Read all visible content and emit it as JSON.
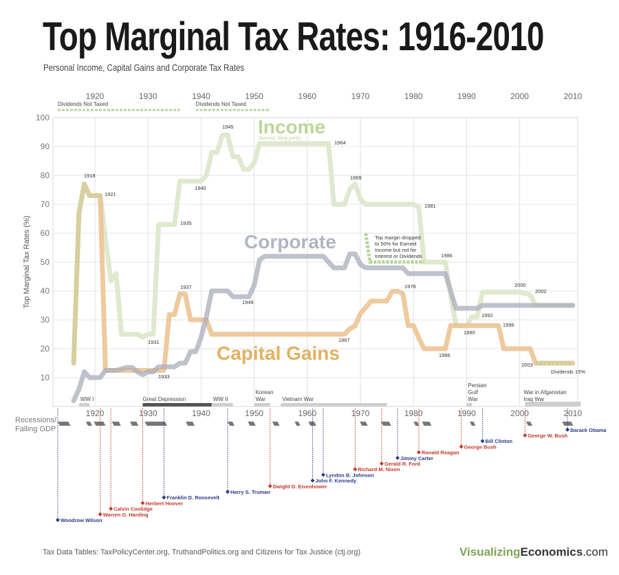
{
  "header": {
    "title": "Top Marginal Tax Rates: 1916-2010",
    "subtitle": "Personal Income, Capital Gains and Corporate Tax Rates"
  },
  "footer": {
    "source": "Tax Data Tables:  TaxPolicyCenter.org, TruthandPolitics.org and Citizens for Tax Justice (ctj.org)",
    "brand_part1": "Visualizing",
    "brand_part2": "Economics",
    "brand_part3": ".com"
  },
  "colors": {
    "income": "#dfe9cf",
    "income_label": "#bcd69c",
    "capital_gains": "#ecc493",
    "capital_gains_label": "#e1b262",
    "corporate": "#a9aebb",
    "corporate_label": "#b1b6c2",
    "overlap": "#d7cf9d",
    "dividends": "#b9d49c",
    "republican": "#c0392b",
    "democrat": "#2c3a8c",
    "recession": "#777777"
  },
  "chart_data": {
    "type": "line",
    "title": "Top Marginal Tax Rates: 1916-2010",
    "subtitle": "Personal Income, Capital Gains and Corporate Tax Rates",
    "ylabel": "Top Marginal Tax Rates (%)",
    "xlim": [
      1912,
      2013
    ],
    "ylim": [
      0,
      100
    ],
    "yticks": [
      10,
      20,
      30,
      40,
      50,
      60,
      70,
      80,
      90,
      100
    ],
    "xticks": [
      1920,
      1930,
      1940,
      1950,
      1960,
      1970,
      1980,
      1990,
      2000,
      2010
    ],
    "grid": true,
    "x_start": 1916,
    "x_end": 2010,
    "series": [
      {
        "name": "Income",
        "note": "Married, filing jointly",
        "values": [
          15,
          67,
          77,
          73,
          73,
          73,
          58,
          43.5,
          46,
          25,
          25,
          25,
          25,
          24,
          25,
          25,
          63,
          63,
          63,
          63,
          78,
          78,
          78,
          78,
          78,
          80,
          88,
          88,
          94,
          94,
          86.45,
          86.45,
          82.13,
          82.13,
          84.36,
          91,
          91,
          91,
          91,
          91,
          91,
          91,
          91,
          91,
          91,
          91,
          91,
          91,
          91,
          70,
          70,
          70,
          75.25,
          77,
          71.75,
          70,
          70,
          70,
          70,
          70,
          70,
          70,
          70,
          70,
          70,
          69,
          50,
          50,
          50,
          50,
          50,
          38.5,
          28,
          28,
          28,
          31,
          31,
          39.6,
          39.6,
          39.6,
          39.6,
          39.6,
          39.6,
          39.6,
          39.6,
          39.1,
          38.6,
          35,
          35,
          35,
          35,
          35,
          35,
          35,
          35
        ]
      },
      {
        "name": "Capital Gains",
        "values": [
          15,
          67,
          77,
          73,
          73,
          73,
          12.5,
          12.5,
          12.5,
          12.5,
          12.5,
          12.5,
          12.5,
          12.5,
          12.5,
          12.5,
          12.5,
          12.5,
          31.8,
          31.8,
          39,
          39,
          30,
          30,
          30,
          30,
          25,
          25,
          25,
          25,
          25,
          25,
          25,
          25,
          25,
          25,
          25,
          25,
          25,
          25,
          25,
          25,
          25,
          25,
          25,
          25,
          25,
          25,
          25,
          25,
          25,
          25,
          26.9,
          27.9,
          32.2,
          34.25,
          36.5,
          36.5,
          36.5,
          36.5,
          39.875,
          39.875,
          39,
          28,
          28,
          23.7,
          20,
          20,
          20,
          20,
          20,
          28,
          28,
          28,
          28,
          28,
          28,
          28,
          28,
          28,
          28,
          20,
          20,
          20,
          20,
          20,
          20,
          15,
          15,
          15,
          15,
          15,
          15,
          15,
          15
        ]
      },
      {
        "name": "Corporate",
        "values": [
          2,
          6,
          12,
          10,
          10,
          10,
          12.5,
          12.5,
          12.5,
          13,
          13.5,
          13.5,
          12,
          11,
          12,
          12,
          13.75,
          13.75,
          13.75,
          13.75,
          15,
          15,
          19,
          19,
          24,
          31,
          40,
          40,
          40,
          40,
          38,
          38,
          38,
          38,
          42,
          50.75,
          52,
          52,
          52,
          52,
          52,
          52,
          52,
          52,
          52,
          52,
          52,
          52,
          50,
          48,
          48,
          48,
          52.8,
          52.8,
          49.2,
          48,
          48,
          48,
          48,
          48,
          48,
          48,
          48,
          46,
          46,
          46,
          46,
          46,
          46,
          46,
          46,
          40,
          34,
          34,
          34,
          34,
          34,
          35,
          35,
          35,
          35,
          35,
          35,
          35,
          35,
          35,
          35,
          35,
          35,
          35,
          35,
          35,
          35,
          35,
          35
        ]
      }
    ],
    "annotations": [
      "1918",
      "1921",
      "1931",
      "1933",
      "1935",
      "1937",
      "1940",
      "1945",
      "1949",
      "1964",
      "1967",
      "1969",
      "1978",
      "1981",
      "1986",
      "1986",
      "1990",
      "1992",
      "1996",
      "2000",
      "2002",
      "2003",
      "Dividends 15%"
    ],
    "margin_note": [
      "Top margin dropped",
      "to 50% for Earned",
      "Income but not for",
      "Interest or Dividends"
    ],
    "dividends_not_taxed": [
      {
        "label": "Dividends Not Taxed",
        "from": 1913,
        "to": 1936
      },
      {
        "label": "Dividends Not Taxed",
        "from": 1939,
        "to": 1953
      }
    ],
    "wars": [
      {
        "label": [
          "WW I"
        ],
        "from": 1917,
        "to": 1919,
        "dark": false
      },
      {
        "label": [
          "Great Depression"
        ],
        "from": 1929,
        "to": 1942,
        "dark": true
      },
      {
        "label": [
          "WW II"
        ],
        "from": 1942,
        "to": 1946,
        "dark": false
      },
      {
        "label": [
          "Korean",
          "War"
        ],
        "from": 1950,
        "to": 1953,
        "dark": false
      },
      {
        "label": [
          "Vietnam War"
        ],
        "from": 1955,
        "to": 1975,
        "dark": false
      },
      {
        "label": [
          "Persian",
          "Gulf",
          "War"
        ],
        "from": 1990,
        "to": 1991,
        "dark": false
      },
      {
        "label": [
          "War in Afganistan",
          "Iraq War"
        ],
        "from": 2001,
        "to": 2011.5,
        "dark": false
      }
    ],
    "recessions_label": [
      "Recessions/",
      "Falling GDP"
    ],
    "recessions": [
      [
        1913,
        1915
      ],
      [
        1918.3,
        1919.1
      ],
      [
        1919.8,
        1921.6
      ],
      [
        1923.2,
        1924.5
      ],
      [
        1926.6,
        1927.8
      ],
      [
        1929.4,
        1933.2
      ],
      [
        1937.1,
        1938.4
      ],
      [
        1945,
        1945.9
      ],
      [
        1948.8,
        1949.9
      ],
      [
        1953.4,
        1954.4
      ],
      [
        1957.6,
        1958.3
      ],
      [
        1960.2,
        1961.3
      ],
      [
        1969.9,
        1971
      ],
      [
        1973.9,
        1975.4
      ],
      [
        1980,
        1980.7
      ],
      [
        1981.6,
        1983
      ],
      [
        1990.6,
        1991.3
      ],
      [
        2001.2,
        2002
      ],
      [
        2008,
        2009.7
      ]
    ],
    "presidents": [
      {
        "name": "Woodrow Wilson",
        "year": 1913,
        "party": "D"
      },
      {
        "name": "Warren G. Harding",
        "year": 1921,
        "party": "R"
      },
      {
        "name": "Calvin Coolidge",
        "year": 1923,
        "party": "R"
      },
      {
        "name": "Herbert Hoover",
        "year": 1929,
        "party": "R"
      },
      {
        "name": "Franklin D. Roosevelt",
        "year": 1933,
        "party": "D"
      },
      {
        "name": "Harry S. Truman",
        "year": 1945,
        "party": "D"
      },
      {
        "name": "Dwight D. Eisenhower",
        "year": 1953,
        "party": "R"
      },
      {
        "name": "John F. Kennedy",
        "year": 1961,
        "party": "D"
      },
      {
        "name": "Lyndon B. Johnson",
        "year": 1963,
        "party": "D"
      },
      {
        "name": "Richard M. Nixon",
        "year": 1969,
        "party": "R"
      },
      {
        "name": "Gerald R. Ford",
        "year": 1974,
        "party": "R"
      },
      {
        "name": "Jimmy Carter",
        "year": 1977,
        "party": "D"
      },
      {
        "name": "Ronald Reagan",
        "year": 1981,
        "party": "R"
      },
      {
        "name": "George Bush",
        "year": 1989,
        "party": "R"
      },
      {
        "name": "Bill Clinton",
        "year": 1993,
        "party": "D"
      },
      {
        "name": "George W. Bush",
        "year": 2001,
        "party": "R"
      },
      {
        "name": "Barack Obama",
        "year": 2009,
        "party": "D"
      }
    ]
  }
}
